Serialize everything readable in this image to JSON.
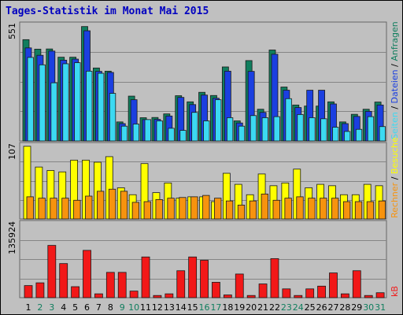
{
  "title": "Tages-Statistik im Monat Mai 2015",
  "colors": {
    "anfragen": "#107e5e",
    "dateien": "#1b3fe0",
    "seiten": "#3cd9f2",
    "besuche": "#ffff00",
    "rechner": "#f7930e",
    "kb": "#f21818",
    "weekend": "#107e5e",
    "weekday": "#000000"
  },
  "chart_data": [
    {
      "type": "bar",
      "panel": "hits",
      "ymax_label": "551",
      "ylim": [
        0,
        551
      ],
      "categories": [
        "1",
        "2",
        "3",
        "4",
        "5",
        "6",
        "7",
        "8",
        "9",
        "10",
        "11",
        "12",
        "13",
        "14",
        "15",
        "16",
        "17",
        "18",
        "19",
        "20",
        "21",
        "22",
        "23",
        "24",
        "25",
        "26",
        "27",
        "28",
        "29",
        "30",
        "31"
      ],
      "series": [
        {
          "name": "Anfragen",
          "values": [
            479,
            434,
            435,
            396,
            396,
            541,
            345,
            330,
            90,
            212,
            110,
            111,
            128,
            214,
            185,
            230,
            215,
            350,
            95,
            380,
            150,
            430,
            255,
            170,
            165,
            165,
            185,
            90,
            126,
            150,
            184
          ]
        },
        {
          "name": "Dateien",
          "values": [
            440,
            405,
            425,
            382,
            387,
            521,
            329,
            324,
            82,
            195,
            101,
            102,
            118,
            206,
            172,
            217,
            202,
            330,
            85,
            329,
            135,
            410,
            240,
            158,
            240,
            240,
            175,
            82,
            116,
            140,
            170
          ]
        },
        {
          "name": "Seiten",
          "values": [
            395,
            360,
            275,
            365,
            370,
            330,
            320,
            225,
            70,
            80,
            101,
            95,
            60,
            50,
            135,
            95,
            195,
            110,
            70,
            120,
            110,
            115,
            200,
            125,
            110,
            105,
            65,
            45,
            55,
            115,
            68
          ]
        }
      ]
    },
    {
      "type": "bar",
      "panel": "visits",
      "ymax_label": "107",
      "ylim": [
        0,
        107
      ],
      "series": [
        {
          "name": "Besuche",
          "values": [
            105,
            75,
            70,
            68,
            85,
            85,
            82,
            90,
            45,
            35,
            80,
            38,
            52,
            30,
            32,
            32,
            25,
            66,
            50,
            35,
            65,
            48,
            52,
            72,
            45,
            50,
            48,
            35,
            35,
            50,
            48
          ]
        },
        {
          "name": "Rechner",
          "values": [
            32,
            30,
            30,
            30,
            27,
            33,
            40,
            43,
            40,
            24,
            25,
            28,
            30,
            31,
            32,
            34,
            30,
            26,
            20,
            26,
            36,
            27,
            30,
            32,
            30,
            30,
            30,
            25,
            25,
            25,
            26
          ]
        }
      ]
    },
    {
      "type": "bar",
      "panel": "traffic",
      "ymax_label": "135924",
      "ylim": [
        0,
        135924
      ],
      "series": [
        {
          "name": "kB",
          "values": [
            22000,
            27000,
            95000,
            62000,
            20000,
            86000,
            7000,
            46000,
            46000,
            12000,
            74000,
            4000,
            7000,
            49000,
            74000,
            68000,
            28000,
            5000,
            43000,
            4000,
            25000,
            71000,
            16000,
            4000,
            16000,
            21000,
            45000,
            7000,
            49000,
            4000,
            9000
          ]
        }
      ]
    }
  ],
  "x_tick_labels": [
    "1",
    "2",
    "3",
    "4",
    "5",
    "6",
    "7",
    "8",
    "9",
    "10",
    "11",
    "12",
    "13",
    "14",
    "15",
    "16",
    "17",
    "18",
    "19",
    "20",
    "21",
    "22",
    "23",
    "24",
    "25",
    "26",
    "27",
    "28",
    "29",
    "30",
    "31"
  ],
  "weekend_days": [
    2,
    3,
    9,
    10,
    16,
    17,
    23,
    24,
    30,
    31
  ],
  "legend": {
    "anfragen": "Anfragen",
    "dateien": "Dateien",
    "seiten": "Seiten",
    "besuche": "Besuche",
    "rechner": "Rechner",
    "kb": "kB"
  }
}
